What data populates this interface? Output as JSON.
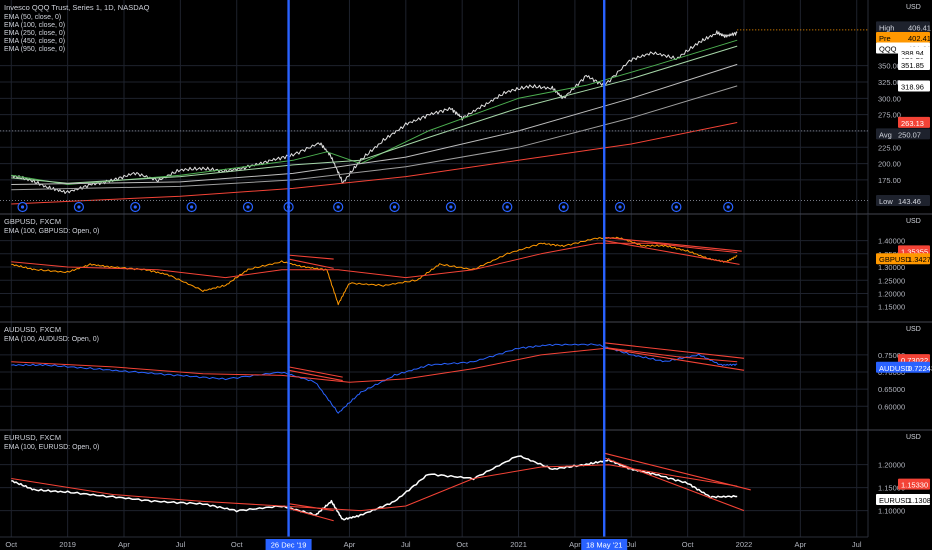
{
  "chart_data": [
    {
      "type": "line",
      "pane": "qqq",
      "title": "Invesco QQQ Trust, Series 1, 1D, NASDAQ",
      "indicators": [
        "EMA (50, close, 0)",
        "EMA (100, close, 0)",
        "EMA (250, close, 0)",
        "EMA (450, close, 0)",
        "EMA (950, close, 0)"
      ],
      "unit": "USD",
      "yticks": [
        175,
        200,
        225,
        250,
        275,
        300,
        325,
        350
      ],
      "ylim": [
        135,
        420
      ],
      "series": [
        {
          "name": "QQQ",
          "color": "#e0e0e0",
          "values": [
            [
              2018.75,
              181
            ],
            [
              2018.83,
              175
            ],
            [
              2018.92,
              162
            ],
            [
              2019.0,
              156
            ],
            [
              2019.1,
              168
            ],
            [
              2019.2,
              175
            ],
            [
              2019.3,
              186
            ],
            [
              2019.4,
              174
            ],
            [
              2019.5,
              190
            ],
            [
              2019.6,
              192
            ],
            [
              2019.7,
              188
            ],
            [
              2019.8,
              195
            ],
            [
              2019.9,
              205
            ],
            [
              2020.0,
              214
            ],
            [
              2020.12,
              232
            ],
            [
              2020.17,
              210
            ],
            [
              2020.22,
              170
            ],
            [
              2020.3,
              205
            ],
            [
              2020.4,
              235
            ],
            [
              2020.5,
              260
            ],
            [
              2020.6,
              275
            ],
            [
              2020.7,
              285
            ],
            [
              2020.75,
              270
            ],
            [
              2020.85,
              290
            ],
            [
              2020.95,
              310
            ],
            [
              2021.05,
              318
            ],
            [
              2021.15,
              315
            ],
            [
              2021.2,
              300
            ],
            [
              2021.3,
              335
            ],
            [
              2021.38,
              320
            ],
            [
              2021.5,
              360
            ],
            [
              2021.6,
              370
            ],
            [
              2021.7,
              360
            ],
            [
              2021.8,
              385
            ],
            [
              2021.88,
              400
            ],
            [
              2021.92,
              395
            ],
            [
              2021.97,
              401
            ]
          ]
        },
        {
          "name": "EMA (50)",
          "color": "#4caf50",
          "values": [
            [
              2018.75,
              182
            ],
            [
              2019.0,
              168
            ],
            [
              2019.5,
              182
            ],
            [
              2020.0,
              205
            ],
            [
              2020.15,
              218
            ],
            [
              2020.3,
              200
            ],
            [
              2020.6,
              250
            ],
            [
              2021.0,
              300
            ],
            [
              2021.3,
              320
            ],
            [
              2021.6,
              350
            ],
            [
              2021.97,
              389
            ]
          ]
        },
        {
          "name": "EMA (100)",
          "color": "#a5d6a7",
          "values": [
            [
              2018.75,
              178
            ],
            [
              2019.0,
              170
            ],
            [
              2019.5,
              180
            ],
            [
              2020.0,
              198
            ],
            [
              2020.3,
              205
            ],
            [
              2020.6,
              240
            ],
            [
              2021.0,
              285
            ],
            [
              2021.5,
              330
            ],
            [
              2021.97,
              380
            ]
          ]
        },
        {
          "name": "EMA (250)",
          "color": "#bdbdbd",
          "values": [
            [
              2018.75,
              168
            ],
            [
              2019.5,
              172
            ],
            [
              2020.0,
              185
            ],
            [
              2020.5,
              210
            ],
            [
              2021.0,
              250
            ],
            [
              2021.5,
              300
            ],
            [
              2021.97,
              352
            ]
          ]
        },
        {
          "name": "EMA (450)",
          "color": "#9e9e9e",
          "values": [
            [
              2018.75,
              160
            ],
            [
              2019.5,
              165
            ],
            [
              2020.0,
              175
            ],
            [
              2020.5,
              195
            ],
            [
              2021.0,
              225
            ],
            [
              2021.5,
              270
            ],
            [
              2021.97,
              319
            ]
          ]
        },
        {
          "name": "EMA (950)",
          "color": "#f44336",
          "values": [
            [
              2018.75,
              138
            ],
            [
              2019.5,
              150
            ],
            [
              2020.0,
              162
            ],
            [
              2020.5,
              180
            ],
            [
              2021.0,
              205
            ],
            [
              2021.5,
              230
            ],
            [
              2021.97,
              263
            ]
          ]
        }
      ],
      "labels": {
        "high": "High",
        "high_value": "406.41",
        "pre": "Pre",
        "pre_value": "402.41",
        "last": "QQQ",
        "last_value": "401.61",
        "ema50": "388.94",
        "ema100": "379.79",
        "ema250": "351.85",
        "ema450": "318.96",
        "ema950": "263.13",
        "avg": "Avg",
        "avg_value": "250.07",
        "low": "Low",
        "low_value": "143.46"
      }
    },
    {
      "type": "line",
      "pane": "gbpusd",
      "title": "GBPUSD, FXCM",
      "indicators": [
        "EMA (100, GBPUSD: Open, 0)"
      ],
      "unit": "USD",
      "yticks": [
        1.15,
        1.2,
        1.25,
        1.3,
        1.35,
        1.4
      ],
      "ylim": [
        1.13,
        1.44
      ],
      "series": [
        {
          "name": "GBPUSD",
          "color": "#ff9800",
          "values": [
            [
              2018.75,
              1.31
            ],
            [
              2018.85,
              1.29
            ],
            [
              2019.0,
              1.28
            ],
            [
              2019.1,
              1.31
            ],
            [
              2019.2,
              1.3
            ],
            [
              2019.35,
              1.29
            ],
            [
              2019.45,
              1.27
            ],
            [
              2019.6,
              1.21
            ],
            [
              2019.7,
              1.23
            ],
            [
              2019.8,
              1.29
            ],
            [
              2019.95,
              1.32
            ],
            [
              2020.05,
              1.3
            ],
            [
              2020.15,
              1.29
            ],
            [
              2020.2,
              1.16
            ],
            [
              2020.25,
              1.24
            ],
            [
              2020.4,
              1.23
            ],
            [
              2020.55,
              1.25
            ],
            [
              2020.65,
              1.31
            ],
            [
              2020.8,
              1.29
            ],
            [
              2020.95,
              1.35
            ],
            [
              2021.1,
              1.39
            ],
            [
              2021.2,
              1.38
            ],
            [
              2021.35,
              1.41
            ],
            [
              2021.45,
              1.41
            ],
            [
              2021.55,
              1.38
            ],
            [
              2021.65,
              1.38
            ],
            [
              2021.75,
              1.36
            ],
            [
              2021.85,
              1.33
            ],
            [
              2021.92,
              1.32
            ],
            [
              2021.97,
              1.3427
            ]
          ]
        },
        {
          "name": "EMA (100)",
          "color": "#f44336",
          "values": [
            [
              2018.75,
              1.32
            ],
            [
              2019.0,
              1.3
            ],
            [
              2019.4,
              1.29
            ],
            [
              2019.7,
              1.26
            ],
            [
              2019.95,
              1.29
            ],
            [
              2020.2,
              1.29
            ],
            [
              2020.5,
              1.26
            ],
            [
              2020.8,
              1.29
            ],
            [
              2021.1,
              1.35
            ],
            [
              2021.35,
              1.39
            ],
            [
              2021.6,
              1.39
            ],
            [
              2021.8,
              1.37
            ],
            [
              2021.97,
              1.355
            ]
          ]
        }
      ],
      "labels": {
        "value1": "1.35355",
        "last": "GBPUSD",
        "last_value": "1.34275"
      }
    },
    {
      "type": "line",
      "pane": "audusd",
      "title": "AUDUSD, FXCM",
      "indicators": [
        "EMA (100, AUDUSD: Open, 0)"
      ],
      "unit": "USD",
      "yticks": [
        0.6,
        0.65,
        0.7,
        0.75
      ],
      "ylim": [
        0.56,
        0.805
      ],
      "series": [
        {
          "name": "AUDUSD",
          "color": "#2962ff",
          "values": [
            [
              2018.75,
              0.72
            ],
            [
              2018.9,
              0.72
            ],
            [
              2019.1,
              0.71
            ],
            [
              2019.3,
              0.7
            ],
            [
              2019.5,
              0.69
            ],
            [
              2019.7,
              0.68
            ],
            [
              2019.95,
              0.7
            ],
            [
              2020.1,
              0.67
            ],
            [
              2020.2,
              0.58
            ],
            [
              2020.3,
              0.64
            ],
            [
              2020.45,
              0.69
            ],
            [
              2020.6,
              0.72
            ],
            [
              2020.8,
              0.73
            ],
            [
              2021.0,
              0.77
            ],
            [
              2021.15,
              0.78
            ],
            [
              2021.35,
              0.78
            ],
            [
              2021.5,
              0.75
            ],
            [
              2021.65,
              0.73
            ],
            [
              2021.8,
              0.75
            ],
            [
              2021.9,
              0.72
            ],
            [
              2021.97,
              0.7224
            ]
          ]
        },
        {
          "name": "EMA (100)",
          "color": "#f44336",
          "values": [
            [
              2018.75,
              0.73
            ],
            [
              2019.2,
              0.715
            ],
            [
              2019.6,
              0.695
            ],
            [
              2019.95,
              0.69
            ],
            [
              2020.25,
              0.67
            ],
            [
              2020.5,
              0.68
            ],
            [
              2020.8,
              0.71
            ],
            [
              2021.1,
              0.75
            ],
            [
              2021.4,
              0.77
            ],
            [
              2021.7,
              0.745
            ],
            [
              2021.97,
              0.73
            ]
          ]
        }
      ],
      "labels": {
        "value1": "0.73022",
        "last": "AUDUSD",
        "last_value": "0.72243"
      }
    },
    {
      "type": "line",
      "pane": "eurusd",
      "title": "EURUSD, FXCM",
      "indicators": [
        "EMA (100, EURUSD: Open, 0)"
      ],
      "unit": "USD",
      "yticks": [
        1.1,
        1.15,
        1.2
      ],
      "ylim": [
        1.06,
        1.245
      ],
      "series": [
        {
          "name": "EURUSD",
          "color": "#ffffff",
          "values": [
            [
              2018.75,
              1.165
            ],
            [
              2018.85,
              1.145
            ],
            [
              2019.0,
              1.14
            ],
            [
              2019.2,
              1.13
            ],
            [
              2019.4,
              1.12
            ],
            [
              2019.6,
              1.115
            ],
            [
              2019.75,
              1.1
            ],
            [
              2019.95,
              1.11
            ],
            [
              2020.1,
              1.09
            ],
            [
              2020.17,
              1.12
            ],
            [
              2020.22,
              1.08
            ],
            [
              2020.3,
              1.09
            ],
            [
              2020.45,
              1.12
            ],
            [
              2020.6,
              1.18
            ],
            [
              2020.8,
              1.17
            ],
            [
              2021.0,
              1.22
            ],
            [
              2021.15,
              1.19
            ],
            [
              2021.3,
              1.2
            ],
            [
              2021.4,
              1.21
            ],
            [
              2021.5,
              1.19
            ],
            [
              2021.6,
              1.18
            ],
            [
              2021.75,
              1.16
            ],
            [
              2021.85,
              1.13
            ],
            [
              2021.97,
              1.1308
            ]
          ]
        },
        {
          "name": "EMA (100)",
          "color": "#f44336",
          "values": [
            [
              2018.75,
              1.17
            ],
            [
              2019.2,
              1.135
            ],
            [
              2019.6,
              1.12
            ],
            [
              2019.95,
              1.11
            ],
            [
              2020.3,
              1.1
            ],
            [
              2020.5,
              1.11
            ],
            [
              2020.8,
              1.17
            ],
            [
              2021.1,
              1.195
            ],
            [
              2021.4,
              1.2
            ],
            [
              2021.7,
              1.175
            ],
            [
              2021.97,
              1.1533
            ]
          ]
        }
      ],
      "labels": {
        "value1": "1.15330",
        "last": "EURUSD",
        "last_value": "1.13082"
      }
    }
  ],
  "x_axis": {
    "ticks": [
      {
        "label": "Oct",
        "t": 2018.75
      },
      {
        "label": "2019",
        "t": 2019.0
      },
      {
        "label": "Apr",
        "t": 2019.25
      },
      {
        "label": "Jul",
        "t": 2019.5
      },
      {
        "label": "Oct",
        "t": 2019.75
      },
      {
        "label": "Apr",
        "t": 2020.25
      },
      {
        "label": "Jul",
        "t": 2020.5
      },
      {
        "label": "Oct",
        "t": 2020.75
      },
      {
        "label": "2021",
        "t": 2021.0
      },
      {
        "label": "Apr",
        "t": 2021.25
      },
      {
        "label": "Jul",
        "t": 2021.5
      },
      {
        "label": "Oct",
        "t": 2021.75
      },
      {
        "label": "2022",
        "t": 2022.0
      },
      {
        "label": "Apr",
        "t": 2022.25
      },
      {
        "label": "Jul",
        "t": 2022.5
      }
    ],
    "markers": [
      {
        "label": "26 Dec '19",
        "t": 2019.98
      },
      {
        "label": "18 May '21",
        "t": 2021.38
      }
    ]
  },
  "colors": {
    "accent": "#2962ff",
    "background": "#000000",
    "grid": "#1e222d",
    "text": "#d1d4dc"
  }
}
